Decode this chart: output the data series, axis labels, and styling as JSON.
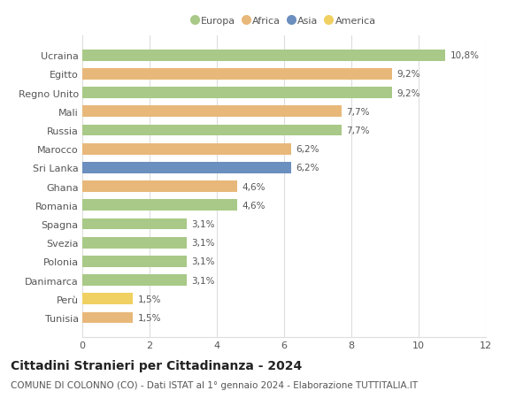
{
  "countries": [
    "Ucraina",
    "Egitto",
    "Regno Unito",
    "Mali",
    "Russia",
    "Marocco",
    "Sri Lanka",
    "Ghana",
    "Romania",
    "Spagna",
    "Svezia",
    "Polonia",
    "Danimarca",
    "Perù",
    "Tunisia"
  ],
  "values": [
    10.8,
    9.2,
    9.2,
    7.7,
    7.7,
    6.2,
    6.2,
    4.6,
    4.6,
    3.1,
    3.1,
    3.1,
    3.1,
    1.5,
    1.5
  ],
  "labels": [
    "10,8%",
    "9,2%",
    "9,2%",
    "7,7%",
    "7,7%",
    "6,2%",
    "6,2%",
    "4,6%",
    "4,6%",
    "3,1%",
    "3,1%",
    "3,1%",
    "3,1%",
    "1,5%",
    "1,5%"
  ],
  "continents": [
    "Europa",
    "Africa",
    "Europa",
    "Africa",
    "Europa",
    "Africa",
    "Asia",
    "Africa",
    "Europa",
    "Europa",
    "Europa",
    "Europa",
    "Europa",
    "America",
    "Africa"
  ],
  "continent_colors": {
    "Europa": "#a8c987",
    "Africa": "#e8b87a",
    "Asia": "#6b8fbe",
    "America": "#f0d060"
  },
  "legend_order": [
    "Europa",
    "Africa",
    "Asia",
    "America"
  ],
  "title": "Cittadini Stranieri per Cittadinanza - 2024",
  "subtitle": "COMUNE DI COLONNO (CO) - Dati ISTAT al 1° gennaio 2024 - Elaborazione TUTTITALIA.IT",
  "xlim": [
    0,
    12
  ],
  "xticks": [
    0,
    2,
    4,
    6,
    8,
    10,
    12
  ],
  "background_color": "#ffffff",
  "grid_color": "#dddddd",
  "title_fontsize": 10,
  "subtitle_fontsize": 7.5,
  "label_fontsize": 7.5,
  "tick_fontsize": 8,
  "bar_height": 0.6
}
